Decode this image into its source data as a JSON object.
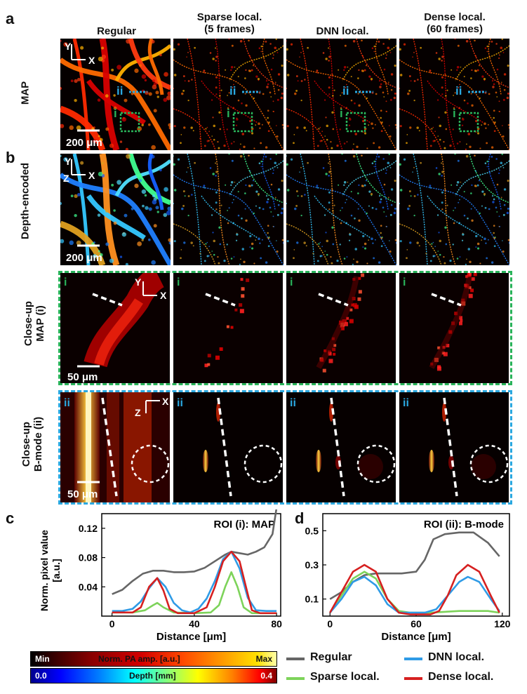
{
  "panel_letters": {
    "a": "a",
    "b": "b",
    "c": "c",
    "d": "d"
  },
  "column_titles": [
    "Regular",
    "Sparse local.\n(5 frames)",
    "DNN local.",
    "Dense local.\n(60 frames)"
  ],
  "row_labels": {
    "map": "MAP",
    "depth": "Depth-encoded",
    "closeup_map": "Close-up\nMAP (i)",
    "closeup_bmode": "Close-up\nB-mode (ii)"
  },
  "annotations": {
    "axis_y": "Y",
    "axis_x": "X",
    "axis_z": "Z",
    "roi_i": "i",
    "roi_ii": "ii",
    "scalebar_200": "200 μm",
    "scalebar_50": "50 μm"
  },
  "colors": {
    "regular": "#666666",
    "sparse": "#7dd35a",
    "dnn": "#2f9be6",
    "dense": "#d62020",
    "roi_i_box": "#29b35a",
    "roi_ii_box": "#2aa8e0",
    "scalebar": "#ffffff"
  },
  "colorbars": {
    "pa": {
      "min": "Min",
      "title": "Norm. PA amp. [a.u.]",
      "max": "Max"
    },
    "depth": {
      "min": "0.0",
      "title": "Depth [mm]",
      "max": "0.4"
    }
  },
  "legend": [
    {
      "key": "regular",
      "label": "Regular"
    },
    {
      "key": "dnn",
      "label": "DNN local."
    },
    {
      "key": "sparse",
      "label": "Sparse local."
    },
    {
      "key": "dense",
      "label": "Dense local."
    }
  ],
  "chart_data": [
    {
      "type": "line",
      "title": "ROI (i): MAP",
      "xlabel": "Distance [μm]",
      "ylabel": "Norm. pixel value\n[a.u.]",
      "xlim": [
        -5,
        82
      ],
      "ylim": [
        0,
        0.14
      ],
      "xticks": [
        0,
        40,
        80
      ],
      "yticks": [
        0.04,
        0.08,
        0.12
      ],
      "ytick_labels": [
        "0.04",
        "0.08",
        "0.12"
      ],
      "grid": false,
      "series": [
        {
          "name": "Regular",
          "key": "regular",
          "x": [
            0,
            5,
            10,
            15,
            20,
            25,
            30,
            35,
            40,
            45,
            50,
            55,
            58,
            62,
            66,
            70,
            74,
            78,
            80
          ],
          "y": [
            0.03,
            0.036,
            0.048,
            0.058,
            0.062,
            0.062,
            0.06,
            0.06,
            0.061,
            0.066,
            0.075,
            0.084,
            0.088,
            0.086,
            0.084,
            0.088,
            0.094,
            0.112,
            0.148
          ]
        },
        {
          "name": "Sparse local.",
          "key": "sparse",
          "x": [
            0,
            10,
            16,
            20,
            22,
            25,
            30,
            40,
            48,
            52,
            55,
            58,
            61,
            64,
            68,
            75,
            80
          ],
          "y": [
            0.005,
            0.005,
            0.008,
            0.015,
            0.018,
            0.012,
            0.005,
            0.004,
            0.005,
            0.015,
            0.04,
            0.06,
            0.04,
            0.012,
            0.004,
            0.004,
            0.004
          ]
        },
        {
          "name": "DNN local.",
          "key": "dnn",
          "x": [
            0,
            5,
            10,
            14,
            18,
            22,
            26,
            30,
            34,
            38,
            42,
            46,
            50,
            54,
            58,
            62,
            66,
            70,
            75,
            80
          ],
          "y": [
            0.007,
            0.007,
            0.01,
            0.02,
            0.038,
            0.052,
            0.04,
            0.018,
            0.008,
            0.005,
            0.01,
            0.024,
            0.048,
            0.078,
            0.088,
            0.065,
            0.025,
            0.008,
            0.007,
            0.007
          ]
        },
        {
          "name": "Dense local.",
          "key": "dense",
          "x": [
            0,
            10,
            14,
            18,
            22,
            25,
            28,
            32,
            40,
            46,
            50,
            54,
            58,
            62,
            66,
            68,
            72,
            80
          ],
          "y": [
            0.005,
            0.005,
            0.012,
            0.04,
            0.052,
            0.035,
            0.01,
            0.004,
            0.004,
            0.012,
            0.04,
            0.075,
            0.088,
            0.075,
            0.03,
            0.008,
            0.004,
            0.004
          ]
        }
      ]
    },
    {
      "type": "line",
      "title": "ROI (ii): B-mode",
      "xlabel": "Distance [μm]",
      "ylabel": "",
      "xlim": [
        -5,
        125
      ],
      "ylim": [
        0,
        0.6
      ],
      "xticks": [
        0,
        60,
        120
      ],
      "yticks": [
        0.1,
        0.3,
        0.5
      ],
      "ytick_labels": [
        "0.1",
        "0.3",
        "0.5"
      ],
      "grid": false,
      "series": [
        {
          "name": "Regular",
          "key": "regular",
          "x": [
            0,
            8,
            16,
            24,
            32,
            40,
            50,
            60,
            66,
            72,
            80,
            90,
            100,
            110,
            118
          ],
          "y": [
            0.1,
            0.14,
            0.2,
            0.24,
            0.25,
            0.25,
            0.25,
            0.26,
            0.33,
            0.45,
            0.48,
            0.49,
            0.49,
            0.43,
            0.35
          ]
        },
        {
          "name": "Sparse local.",
          "key": "sparse",
          "x": [
            0,
            8,
            16,
            24,
            32,
            40,
            48,
            56,
            70,
            90,
            110,
            118
          ],
          "y": [
            0.02,
            0.12,
            0.22,
            0.26,
            0.22,
            0.1,
            0.03,
            0.02,
            0.02,
            0.03,
            0.03,
            0.02
          ]
        },
        {
          "name": "DNN local.",
          "key": "dnn",
          "x": [
            0,
            8,
            16,
            24,
            32,
            40,
            48,
            56,
            66,
            74,
            82,
            90,
            96,
            104,
            112,
            118
          ],
          "y": [
            0.02,
            0.1,
            0.2,
            0.23,
            0.18,
            0.07,
            0.02,
            0.02,
            0.02,
            0.04,
            0.12,
            0.2,
            0.23,
            0.2,
            0.1,
            0.03
          ]
        },
        {
          "name": "Dense local.",
          "key": "dense",
          "x": [
            0,
            8,
            16,
            24,
            32,
            40,
            48,
            56,
            70,
            76,
            82,
            88,
            96,
            104,
            112,
            118
          ],
          "y": [
            0.02,
            0.14,
            0.26,
            0.3,
            0.26,
            0.1,
            0.02,
            0.01,
            0.01,
            0.03,
            0.12,
            0.24,
            0.3,
            0.26,
            0.12,
            0.02
          ]
        }
      ]
    }
  ]
}
